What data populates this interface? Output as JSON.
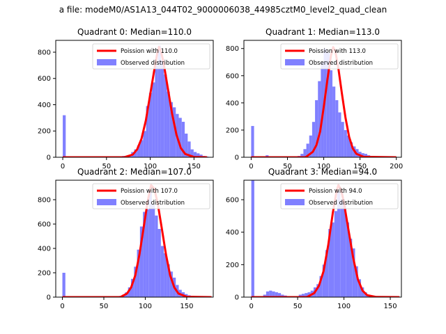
{
  "figure": {
    "suptitle": "a file: modeM0/AS1A13_044T02_9000006038_44985cztM0_level2_quad_clean"
  },
  "colors": {
    "fit_line": "#ff0000",
    "histogram": "#8080ff",
    "axes": "#000000"
  },
  "chart_data": [
    {
      "type": "bar",
      "title": "Quadrant 0: Median=110.0",
      "xlim": [
        -8,
        172
      ],
      "ylim": [
        0,
        890
      ],
      "xticks": [
        0,
        50,
        100,
        150
      ],
      "yticks": [
        0,
        200,
        400,
        600,
        800
      ],
      "legend": {
        "placement": "upper right",
        "entries": [
          "Poission with 110.0",
          "Observed distribution"
        ]
      },
      "series": [
        {
          "name": "Poission with 110.0",
          "kind": "line",
          "x": [
            0,
            70,
            80,
            85,
            90,
            95,
            100,
            105,
            108,
            110,
            112,
            115,
            120,
            125,
            130,
            135,
            140,
            150,
            165
          ],
          "y": [
            0,
            0,
            20,
            60,
            140,
            280,
            480,
            680,
            790,
            840,
            810,
            730,
            530,
            330,
            170,
            70,
            25,
            2,
            0
          ]
        },
        {
          "name": "Observed distribution",
          "kind": "histogram",
          "bin_width": 3.4,
          "x": [
            0,
            3.4,
            6.8,
            10.2,
            13.6,
            17,
            20.4,
            23.8,
            27.2,
            30.6,
            34,
            37.4,
            40.8,
            44.2,
            47.6,
            51,
            54.4,
            57.8,
            61.2,
            64.6,
            68,
            71.4,
            74.8,
            78.2,
            81.6,
            85,
            88.4,
            91.8,
            95.2,
            98.6,
            102,
            105.4,
            108.8,
            112.2,
            115.6,
            119,
            122.4,
            125.8,
            129.2,
            132.6,
            136,
            139.4,
            142.8,
            146.2,
            149.6,
            153,
            156.4,
            159.8,
            163.2
          ],
          "y": [
            320,
            5,
            2,
            2,
            2,
            2,
            2,
            2,
            2,
            2,
            2,
            2,
            2,
            2,
            2,
            2,
            2,
            2,
            5,
            5,
            10,
            10,
            15,
            40,
            60,
            90,
            130,
            200,
            390,
            490,
            570,
            700,
            850,
            740,
            630,
            500,
            420,
            380,
            330,
            300,
            270,
            180,
            120,
            60,
            40,
            30,
            20,
            10,
            5
          ]
        }
      ]
    },
    {
      "type": "bar",
      "title": "Quadrant 1: Median=113.0",
      "xlim": [
        -10,
        207
      ],
      "ylim": [
        0,
        860
      ],
      "xticks": [
        0,
        50,
        100,
        150,
        200
      ],
      "yticks": [
        0,
        200,
        400,
        600,
        800
      ],
      "legend": {
        "placement": "upper right",
        "entries": [
          "Poission with 113.0",
          "Observed distribution"
        ]
      },
      "series": [
        {
          "name": "Poission with 113.0",
          "kind": "line",
          "x": [
            0,
            75,
            85,
            90,
            95,
            100,
            105,
            110,
            113,
            116,
            120,
            125,
            130,
            135,
            140,
            145,
            155,
            200
          ],
          "y": [
            0,
            0,
            40,
            90,
            190,
            370,
            570,
            750,
            810,
            780,
            660,
            470,
            290,
            150,
            65,
            25,
            3,
            0
          ]
        },
        {
          "name": "Observed distribution",
          "kind": "histogram",
          "bin_width": 4.0,
          "x": [
            0,
            4,
            8,
            12,
            16,
            20,
            24,
            28,
            32,
            36,
            40,
            44,
            48,
            52,
            56,
            60,
            64,
            68,
            72,
            76,
            80,
            84,
            88,
            92,
            96,
            100,
            104,
            108,
            112,
            116,
            120,
            124,
            128,
            132,
            136,
            140,
            144,
            148,
            152,
            156,
            160,
            164,
            168,
            172,
            176,
            180,
            184,
            188,
            192
          ],
          "y": [
            230,
            3,
            2,
            2,
            2,
            15,
            5,
            2,
            2,
            3,
            2,
            2,
            2,
            2,
            5,
            2,
            10,
            25,
            60,
            100,
            160,
            260,
            420,
            560,
            700,
            800,
            770,
            640,
            520,
            420,
            330,
            260,
            200,
            160,
            110,
            80,
            60,
            40,
            30,
            25,
            15,
            10,
            5,
            3,
            2,
            2,
            1,
            1,
            1
          ]
        }
      ]
    },
    {
      "type": "bar",
      "title": "Quadrant 2: Median=107.0",
      "xlim": [
        -8,
        182
      ],
      "ylim": [
        0,
        960
      ],
      "xticks": [
        0,
        50,
        100,
        150
      ],
      "yticks": [
        0,
        200,
        400,
        600,
        800
      ],
      "legend": {
        "placement": "upper right",
        "entries": [
          "Poission with 107.0",
          "Observed distribution"
        ]
      },
      "series": [
        {
          "name": "Poission with 107.0",
          "kind": "line",
          "x": [
            0,
            70,
            78,
            83,
            88,
            93,
            98,
            103,
            107,
            111,
            115,
            120,
            125,
            130,
            135,
            140,
            150,
            180
          ],
          "y": [
            0,
            0,
            30,
            80,
            180,
            350,
            570,
            790,
            920,
            890,
            770,
            560,
            350,
            180,
            80,
            30,
            3,
            0
          ]
        },
        {
          "name": "Observed distribution",
          "kind": "histogram",
          "bin_width": 3.6,
          "x": [
            0,
            3.6,
            7.2,
            10.8,
            14.4,
            18,
            21.6,
            25.2,
            28.8,
            32.4,
            36,
            39.6,
            43.2,
            46.8,
            50.4,
            54,
            57.6,
            61.2,
            64.8,
            68.4,
            72,
            75.6,
            79.2,
            82.8,
            86.4,
            90,
            93.6,
            97.2,
            100.8,
            104.4,
            108,
            111.6,
            115.2,
            118.8,
            122.4,
            126,
            129.6,
            133.2,
            136.8,
            140.4,
            144,
            147.6,
            151.2,
            154.8,
            158.4,
            162,
            165.6,
            169.2,
            172.8
          ],
          "y": [
            200,
            2,
            2,
            2,
            2,
            2,
            2,
            2,
            2,
            2,
            2,
            2,
            2,
            2,
            2,
            2,
            2,
            2,
            5,
            10,
            20,
            40,
            80,
            150,
            250,
            390,
            580,
            700,
            720,
            860,
            760,
            670,
            560,
            420,
            360,
            270,
            210,
            160,
            100,
            60,
            40,
            25,
            15,
            10,
            5,
            3,
            2,
            1,
            1
          ]
        }
      ]
    },
    {
      "type": "bar",
      "title": "Quadrant 3: Median=94.0",
      "xlim": [
        -8,
        162
      ],
      "ylim": [
        0,
        720
      ],
      "xticks": [
        0,
        50,
        100,
        150
      ],
      "yticks": [
        0,
        200,
        400,
        600
      ],
      "legend": {
        "placement": "upper right",
        "entries": [
          "Poission with 94.0",
          "Observed distribution"
        ]
      },
      "series": [
        {
          "name": "Poission with 94.0",
          "kind": "line",
          "x": [
            0,
            60,
            68,
            73,
            78,
            83,
            88,
            92,
            94,
            97,
            100,
            105,
            110,
            115,
            120,
            125,
            135,
            160
          ],
          "y": [
            0,
            0,
            25,
            70,
            160,
            320,
            520,
            650,
            690,
            660,
            580,
            410,
            240,
            110,
            40,
            12,
            1,
            0
          ]
        },
        {
          "name": "Observed distribution",
          "kind": "histogram",
          "bin_width": 3.2,
          "x": [
            0,
            3.2,
            6.4,
            9.6,
            12.8,
            16,
            19.2,
            22.4,
            25.6,
            28.8,
            32,
            35.2,
            38.4,
            41.6,
            44.8,
            48,
            51.2,
            54.4,
            57.6,
            60.8,
            64,
            67.2,
            70.4,
            73.6,
            76.8,
            80,
            83.2,
            86.4,
            89.6,
            92.8,
            96,
            99.2,
            102.4,
            105.6,
            108.8,
            112,
            115.2,
            118.4,
            121.6,
            124.8,
            128,
            131.2,
            134.4,
            137.6,
            140.8,
            144,
            147.2,
            150.4,
            153.6
          ],
          "y": [
            720,
            3,
            2,
            5,
            15,
            35,
            40,
            35,
            30,
            25,
            15,
            10,
            5,
            3,
            2,
            5,
            15,
            20,
            25,
            30,
            40,
            60,
            80,
            130,
            200,
            290,
            420,
            460,
            530,
            650,
            600,
            570,
            460,
            360,
            300,
            190,
            110,
            60,
            30,
            15,
            8,
            4,
            2,
            1,
            1,
            0,
            0,
            0,
            0
          ]
        }
      ]
    }
  ]
}
